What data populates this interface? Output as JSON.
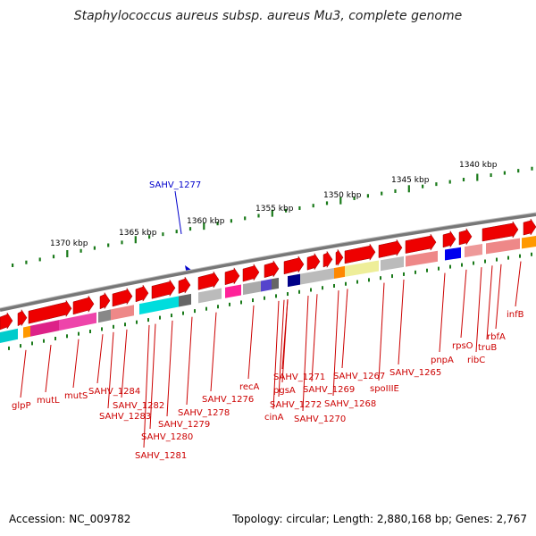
{
  "title": "Staphylococcus aureus subsp. aureus Mu3, complete genome",
  "footer": {
    "accession": "Accession: NC_009782",
    "info": "Topology: circular; Length: 2,880,168 bp; Genes: 2,767"
  },
  "scale_ticks": [
    "1370 kbp",
    "1365 kbp",
    "1360 kbp",
    "1355 kbp",
    "1350 kbp",
    "1345 kbp",
    "1340 kbp"
  ],
  "highlight_gene": "SAHV_1277",
  "gene_labels": [
    "infB",
    "rbfA",
    "truB",
    "ribC",
    "rpsO",
    "pnpA",
    "SAHV_1265",
    "spoIIIE",
    "SAHV_1267",
    "SAHV_1268",
    "SAHV_1269",
    "SAHV_1270",
    "SAHV_1271",
    "SAHV_1272",
    "pgsA",
    "cinA",
    "recA",
    "SAHV_1276",
    "SAHV_1278",
    "SAHV_1279",
    "SAHV_1280",
    "SAHV_1281",
    "SAHV_1282",
    "SAHV_1283",
    "SAHV_1284",
    "mutS",
    "mutL",
    "glpP"
  ],
  "colors": {
    "gene_arrow": "#ff0000",
    "label": "#cc0000",
    "highlight": "#0000cc",
    "backbone": "#888888",
    "tick": "#1a7a1a"
  }
}
